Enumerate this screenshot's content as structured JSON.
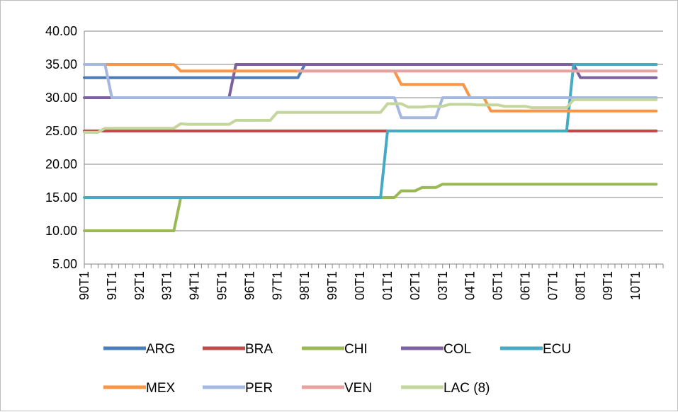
{
  "chart_data": {
    "type": "line",
    "title": "",
    "xlabel": "",
    "ylabel": "",
    "ylim": [
      5,
      40
    ],
    "yticks": [
      "5.00",
      "10.00",
      "15.00",
      "20.00",
      "25.00",
      "30.00",
      "35.00",
      "40.00"
    ],
    "x_tick_labels": [
      "90T1",
      "91T1",
      "92T1",
      "93T1",
      "94T1",
      "95T1",
      "96T1",
      "97T1",
      "98T1",
      "99T1",
      "00T1",
      "01T1",
      "02T1",
      "03T1",
      "04T1",
      "05T1",
      "06T1",
      "07T1",
      "08T1",
      "09T1",
      "10T1"
    ],
    "x_range": [
      1990.0,
      2011.0
    ],
    "grid": "horizontal",
    "legend_position": "bottom",
    "series": [
      {
        "name": "ARG",
        "color": "#4a7ebb",
        "points": [
          [
            1990.0,
            33
          ],
          [
            1997.75,
            33
          ],
          [
            1998.0,
            35
          ],
          [
            2010.75,
            35
          ]
        ]
      },
      {
        "name": "BRA",
        "color": "#be4b48",
        "points": [
          [
            1990.0,
            25
          ],
          [
            2010.75,
            25
          ]
        ]
      },
      {
        "name": "CHI",
        "color": "#98b954",
        "points": [
          [
            1990.0,
            10
          ],
          [
            1993.25,
            10
          ],
          [
            1993.5,
            15
          ],
          [
            2000.75,
            15
          ],
          [
            2001.0,
            15
          ],
          [
            2001.25,
            15
          ],
          [
            2001.5,
            16
          ],
          [
            2002.0,
            16
          ],
          [
            2002.25,
            16.5
          ],
          [
            2002.75,
            16.5
          ],
          [
            2003.0,
            17
          ],
          [
            2010.75,
            17
          ]
        ]
      },
      {
        "name": "COL",
        "color": "#7d60a0",
        "points": [
          [
            1990.0,
            30
          ],
          [
            1995.25,
            30
          ],
          [
            1995.5,
            35
          ],
          [
            2007.75,
            35
          ],
          [
            2008.0,
            33
          ],
          [
            2010.75,
            33
          ]
        ]
      },
      {
        "name": "ECU",
        "color": "#46aac5",
        "points": [
          [
            1990.0,
            15
          ],
          [
            2000.75,
            15
          ],
          [
            2001.0,
            25
          ],
          [
            2007.5,
            25
          ],
          [
            2007.75,
            35
          ],
          [
            2010.75,
            35
          ]
        ]
      },
      {
        "name": "MEX",
        "color": "#f79646",
        "points": [
          [
            1990.25,
            35
          ],
          [
            1993.25,
            35
          ],
          [
            1993.5,
            34
          ],
          [
            2001.25,
            34
          ],
          [
            2001.5,
            32
          ],
          [
            2003.75,
            32
          ],
          [
            2004.0,
            30
          ],
          [
            2004.5,
            30
          ],
          [
            2004.75,
            28
          ],
          [
            2010.75,
            28
          ]
        ]
      },
      {
        "name": "PER",
        "color": "#a5b8e0",
        "points": [
          [
            1990.0,
            35
          ],
          [
            1990.75,
            35
          ],
          [
            1991.0,
            30
          ],
          [
            2001.25,
            30
          ],
          [
            2001.5,
            27
          ],
          [
            2002.75,
            27
          ],
          [
            2003.0,
            30
          ],
          [
            2010.75,
            30
          ]
        ]
      },
      {
        "name": "VEN",
        "color": "#e6a1a1",
        "points": [
          [
            1997.75,
            34
          ],
          [
            2010.75,
            34
          ]
        ]
      },
      {
        "name": "LAC (8)",
        "color": "#c3d69b",
        "points": [
          [
            1990.0,
            24.8
          ],
          [
            1990.5,
            24.8
          ],
          [
            1990.75,
            25.4
          ],
          [
            1993.25,
            25.4
          ],
          [
            1993.5,
            26.1
          ],
          [
            1993.75,
            26.0
          ],
          [
            1995.25,
            26.0
          ],
          [
            1995.5,
            26.6
          ],
          [
            1996.75,
            26.6
          ],
          [
            1997.0,
            27.8
          ],
          [
            2000.75,
            27.8
          ],
          [
            2001.0,
            29.1
          ],
          [
            2001.5,
            29.1
          ],
          [
            2001.75,
            28.6
          ],
          [
            2002.25,
            28.6
          ],
          [
            2002.5,
            28.7
          ],
          [
            2003.0,
            28.7
          ],
          [
            2003.25,
            29.0
          ],
          [
            2004.0,
            29.0
          ],
          [
            2004.25,
            28.9
          ],
          [
            2005.0,
            28.9
          ],
          [
            2005.25,
            28.7
          ],
          [
            2006.0,
            28.7
          ],
          [
            2006.25,
            28.5
          ],
          [
            2007.5,
            28.5
          ],
          [
            2007.75,
            29.7
          ],
          [
            2010.75,
            29.7
          ]
        ]
      }
    ]
  }
}
